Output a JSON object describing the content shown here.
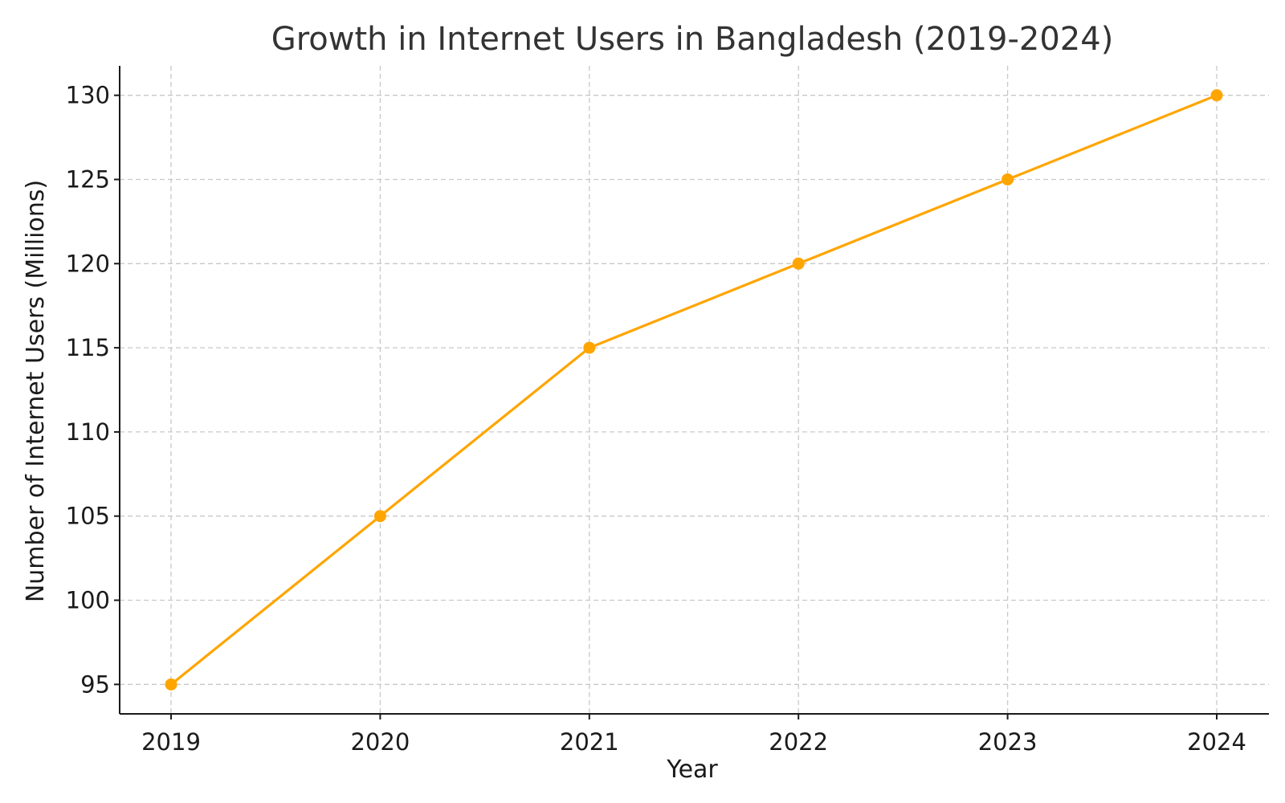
{
  "chart_data": {
    "type": "line",
    "title": "Growth in Internet Users in Bangladesh (2019-2024)",
    "xlabel": "Year",
    "ylabel": "Number of Internet Users (Millions)",
    "categories": [
      "2019",
      "2020",
      "2021",
      "2022",
      "2023",
      "2024"
    ],
    "series": [
      {
        "values": [
          95,
          105,
          115,
          120,
          125,
          130
        ],
        "color": "#FFA500"
      }
    ],
    "yticks": [
      "95",
      "100",
      "105",
      "110",
      "115",
      "120",
      "125",
      "130"
    ],
    "ylim": [
      93.25,
      131.75
    ],
    "grid": true,
    "legend": "none"
  }
}
